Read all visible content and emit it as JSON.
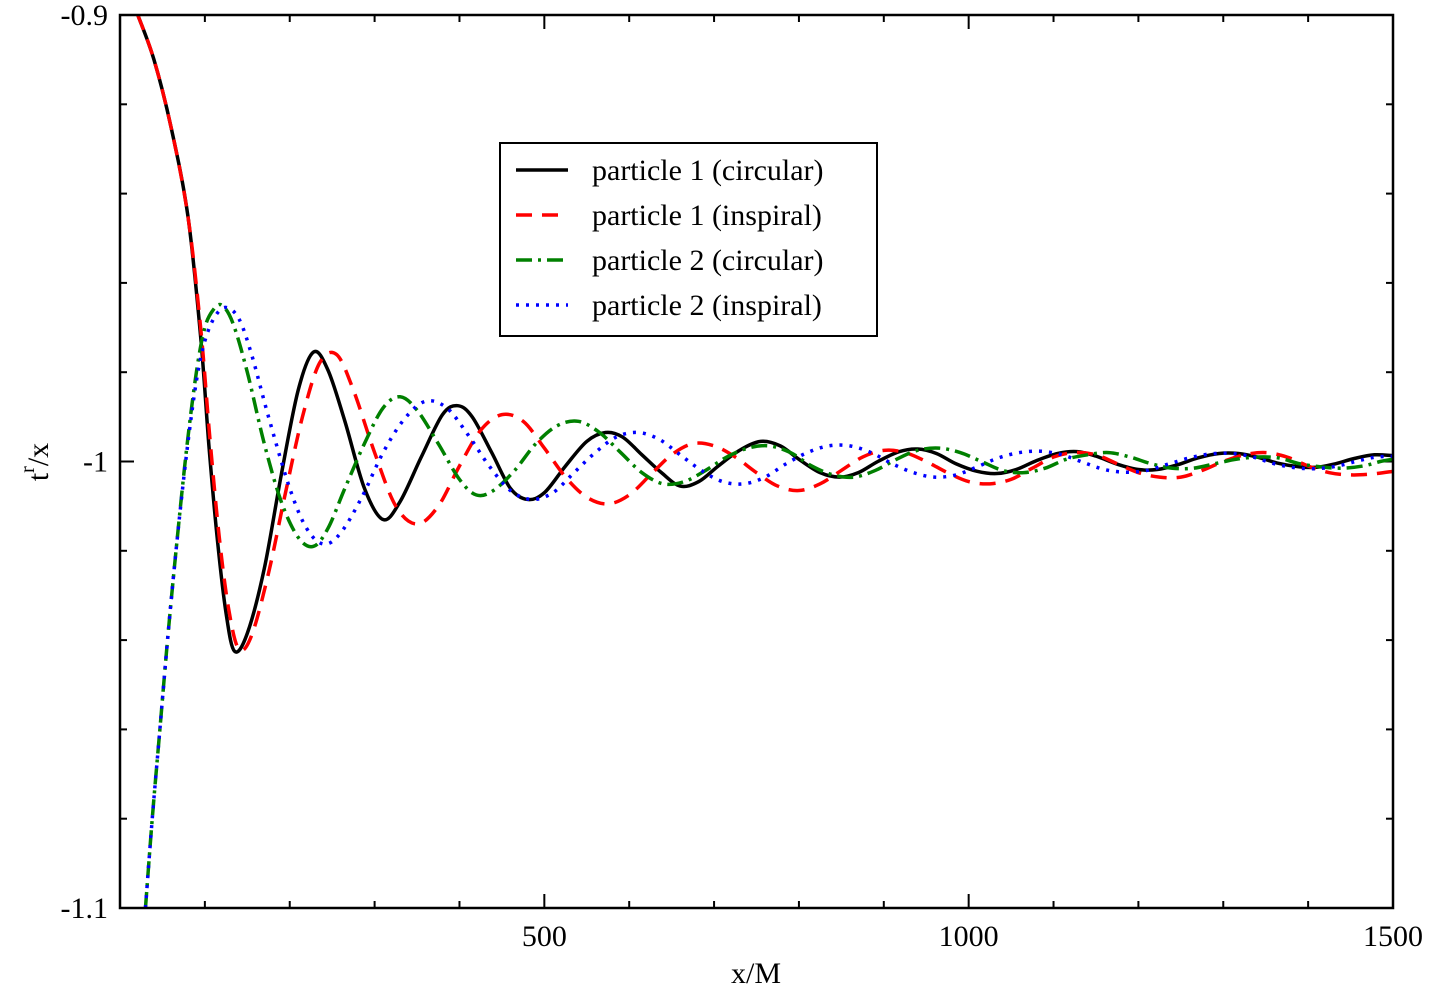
{
  "chart_data": {
    "type": "line",
    "xlabel": "x/M",
    "ylabel": {
      "base": "t",
      "superscript": "r",
      "subscript": "/x"
    },
    "xlim": [
      0,
      1500
    ],
    "ylim": [
      -1.1,
      -0.9
    ],
    "x_major_ticks": [
      500,
      1000,
      1500
    ],
    "x_tick_labels": [
      "500",
      "1000",
      "1500"
    ],
    "x_minor_step": 100,
    "y_major_ticks": [
      -1.1,
      -1.0,
      -0.9
    ],
    "y_tick_labels": [
      "-1.1",
      "-1",
      "-0.9"
    ],
    "y_minor_step": 0.02,
    "grid": false,
    "legend_position": "top-center",
    "series": [
      {
        "name": "particle 1 (circular)",
        "color": "#000000",
        "style": "solid",
        "points": [
          [
            21,
            -0.9
          ],
          [
            40,
            -0.91
          ],
          [
            60,
            -0.925
          ],
          [
            80,
            -0.945
          ],
          [
            95,
            -0.972
          ],
          [
            105,
            -0.997
          ],
          [
            115,
            -1.018
          ],
          [
            125,
            -1.034
          ],
          [
            135,
            -1.0425
          ],
          [
            150,
            -1.0385
          ],
          [
            170,
            -1.024
          ],
          [
            190,
            -1.003
          ],
          [
            210,
            -0.984
          ],
          [
            228,
            -0.9755
          ],
          [
            245,
            -0.9795
          ],
          [
            265,
            -0.991
          ],
          [
            288,
            -1.006
          ],
          [
            310,
            -1.013
          ],
          [
            330,
            -1.009
          ],
          [
            355,
            -0.999
          ],
          [
            380,
            -0.9895
          ],
          [
            398,
            -0.9875
          ],
          [
            415,
            -0.99
          ],
          [
            438,
            -0.998
          ],
          [
            460,
            -1.006
          ],
          [
            480,
            -1.0085
          ],
          [
            500,
            -1.007
          ],
          [
            525,
            -1.001
          ],
          [
            550,
            -0.9955
          ],
          [
            572,
            -0.9935
          ],
          [
            592,
            -0.9945
          ],
          [
            615,
            -0.9985
          ],
          [
            638,
            -1.0025
          ],
          [
            660,
            -1.0055
          ],
          [
            682,
            -1.0045
          ],
          [
            705,
            -1.001
          ],
          [
            730,
            -0.9975
          ],
          [
            755,
            -0.9955
          ],
          [
            778,
            -0.9965
          ],
          [
            800,
            -0.9995
          ],
          [
            825,
            -1.0025
          ],
          [
            848,
            -1.0035
          ],
          [
            870,
            -1.0025
          ],
          [
            893,
            -1.0
          ],
          [
            918,
            -0.9978
          ],
          [
            940,
            -0.9972
          ],
          [
            962,
            -0.9982
          ],
          [
            985,
            -1.0005
          ],
          [
            1010,
            -1.0022
          ],
          [
            1033,
            -1.0027
          ],
          [
            1056,
            -1.0018
          ],
          [
            1080,
            -0.9998
          ],
          [
            1105,
            -0.9982
          ],
          [
            1128,
            -0.9978
          ],
          [
            1150,
            -0.9988
          ],
          [
            1175,
            -1.0006
          ],
          [
            1200,
            -1.0018
          ],
          [
            1222,
            -1.0018
          ],
          [
            1245,
            -1.0008
          ],
          [
            1270,
            -0.9992
          ],
          [
            1295,
            -0.9982
          ],
          [
            1318,
            -0.9982
          ],
          [
            1340,
            -0.999
          ],
          [
            1365,
            -1.0004
          ],
          [
            1390,
            -1.0012
          ],
          [
            1410,
            -1.0013
          ],
          [
            1430,
            -1.0006
          ],
          [
            1455,
            -0.9993
          ],
          [
            1478,
            -0.9985
          ],
          [
            1500,
            -0.9987
          ]
        ]
      },
      {
        "name": "particle 1 (inspiral)",
        "color": "#ff0000",
        "style": "dashed",
        "points": [
          [
            21,
            -0.9
          ],
          [
            40,
            -0.91
          ],
          [
            60,
            -0.925
          ],
          [
            80,
            -0.945
          ],
          [
            95,
            -0.97
          ],
          [
            106,
            -0.995
          ],
          [
            117,
            -1.017
          ],
          [
            128,
            -1.033
          ],
          [
            140,
            -1.042
          ],
          [
            155,
            -1.039
          ],
          [
            175,
            -1.025
          ],
          [
            195,
            -1.007
          ],
          [
            215,
            -0.99
          ],
          [
            235,
            -0.978
          ],
          [
            255,
            -0.976
          ],
          [
            275,
            -0.984
          ],
          [
            300,
            -0.998
          ],
          [
            325,
            -1.01
          ],
          [
            350,
            -1.014
          ],
          [
            375,
            -1.01
          ],
          [
            400,
            -1.001
          ],
          [
            425,
            -0.993
          ],
          [
            450,
            -0.9895
          ],
          [
            475,
            -0.991
          ],
          [
            500,
            -0.997
          ],
          [
            525,
            -1.0035
          ],
          [
            550,
            -1.008
          ],
          [
            575,
            -1.0095
          ],
          [
            600,
            -1.0075
          ],
          [
            625,
            -1.003
          ],
          [
            650,
            -0.9985
          ],
          [
            675,
            -0.996
          ],
          [
            700,
            -0.9965
          ],
          [
            725,
            -0.999
          ],
          [
            750,
            -1.0025
          ],
          [
            775,
            -1.0055
          ],
          [
            800,
            -1.0065
          ],
          [
            825,
            -1.005
          ],
          [
            850,
            -1.002
          ],
          [
            875,
            -0.999
          ],
          [
            900,
            -0.9975
          ],
          [
            925,
            -0.998
          ],
          [
            950,
            -1.0
          ],
          [
            975,
            -1.0025
          ],
          [
            1000,
            -1.0045
          ],
          [
            1025,
            -1.005
          ],
          [
            1050,
            -1.004
          ],
          [
            1075,
            -1.0015
          ],
          [
            1100,
            -0.999
          ],
          [
            1125,
            -0.998
          ],
          [
            1150,
            -0.9985
          ],
          [
            1175,
            -1.0005
          ],
          [
            1200,
            -1.0025
          ],
          [
            1225,
            -1.0035
          ],
          [
            1250,
            -1.0035
          ],
          [
            1275,
            -1.002
          ],
          [
            1300,
            -1.0
          ],
          [
            1325,
            -0.9985
          ],
          [
            1350,
            -0.998
          ],
          [
            1375,
            -0.999
          ],
          [
            1400,
            -1.001
          ],
          [
            1425,
            -1.0025
          ],
          [
            1450,
            -1.003
          ],
          [
            1475,
            -1.0028
          ],
          [
            1500,
            -1.0022
          ]
        ]
      },
      {
        "name": "particle 2 (circular)",
        "color": "#008000",
        "style": "dashdot",
        "points": [
          [
            30,
            -1.1
          ],
          [
            38,
            -1.08
          ],
          [
            47,
            -1.06
          ],
          [
            56,
            -1.04
          ],
          [
            66,
            -1.02
          ],
          [
            78,
            -0.998
          ],
          [
            90,
            -0.98
          ],
          [
            100,
            -0.97
          ],
          [
            110,
            -0.966
          ],
          [
            120,
            -0.965
          ],
          [
            133,
            -0.969
          ],
          [
            150,
            -0.98
          ],
          [
            170,
            -0.996
          ],
          [
            190,
            -1.009
          ],
          [
            210,
            -1.017
          ],
          [
            228,
            -1.019
          ],
          [
            245,
            -1.015
          ],
          [
            265,
            -1.006
          ],
          [
            288,
            -0.996
          ],
          [
            310,
            -0.988
          ],
          [
            330,
            -0.9855
          ],
          [
            350,
            -0.9885
          ],
          [
            375,
            -0.996
          ],
          [
            400,
            -1.004
          ],
          [
            420,
            -1.0075
          ],
          [
            440,
            -1.0065
          ],
          [
            465,
            -1.002
          ],
          [
            490,
            -0.996
          ],
          [
            515,
            -0.992
          ],
          [
            540,
            -0.991
          ],
          [
            565,
            -0.9935
          ],
          [
            590,
            -0.998
          ],
          [
            615,
            -1.0025
          ],
          [
            640,
            -1.005
          ],
          [
            665,
            -1.0045
          ],
          [
            690,
            -1.002
          ],
          [
            715,
            -0.999
          ],
          [
            740,
            -0.997
          ],
          [
            765,
            -0.9965
          ],
          [
            790,
            -0.998
          ],
          [
            815,
            -1.001
          ],
          [
            840,
            -1.003
          ],
          [
            865,
            -1.0035
          ],
          [
            890,
            -1.002
          ],
          [
            915,
            -0.9995
          ],
          [
            940,
            -0.9975
          ],
          [
            965,
            -0.997
          ],
          [
            990,
            -0.998
          ],
          [
            1015,
            -1.0
          ],
          [
            1040,
            -1.002
          ],
          [
            1065,
            -1.0025
          ],
          [
            1090,
            -1.0015
          ],
          [
            1115,
            -0.9995
          ],
          [
            1140,
            -0.9985
          ],
          [
            1165,
            -0.998
          ],
          [
            1190,
            -0.999
          ],
          [
            1215,
            -1.0005
          ],
          [
            1240,
            -1.0015
          ],
          [
            1265,
            -1.0015
          ],
          [
            1290,
            -1.0005
          ],
          [
            1315,
            -0.9995
          ],
          [
            1340,
            -0.999
          ],
          [
            1365,
            -0.9992
          ],
          [
            1390,
            -1.0005
          ],
          [
            1415,
            -1.0012
          ],
          [
            1440,
            -1.0015
          ],
          [
            1465,
            -1.001
          ],
          [
            1485,
            -1.0
          ],
          [
            1500,
            -0.9995
          ]
        ]
      },
      {
        "name": "particle 2 (inspiral)",
        "color": "#0000ff",
        "style": "dotted",
        "points": [
          [
            30,
            -1.1
          ],
          [
            38,
            -1.08
          ],
          [
            47,
            -1.06
          ],
          [
            56,
            -1.04
          ],
          [
            66,
            -1.02
          ],
          [
            78,
            -0.999
          ],
          [
            90,
            -0.982
          ],
          [
            100,
            -0.973
          ],
          [
            112,
            -0.9675
          ],
          [
            125,
            -0.9655
          ],
          [
            140,
            -0.968
          ],
          [
            155,
            -0.976
          ],
          [
            175,
            -0.99
          ],
          [
            200,
            -1.006
          ],
          [
            220,
            -1.015
          ],
          [
            240,
            -1.0185
          ],
          [
            260,
            -1.016
          ],
          [
            285,
            -1.008
          ],
          [
            310,
            -0.998
          ],
          [
            335,
            -0.9905
          ],
          [
            360,
            -0.9865
          ],
          [
            385,
            -0.988
          ],
          [
            410,
            -0.994
          ],
          [
            435,
            -1.001
          ],
          [
            460,
            -1.0065
          ],
          [
            485,
            -1.0085
          ],
          [
            510,
            -1.007
          ],
          [
            535,
            -1.0025
          ],
          [
            560,
            -0.998
          ],
          [
            585,
            -0.9945
          ],
          [
            610,
            -0.9935
          ],
          [
            635,
            -0.995
          ],
          [
            660,
            -0.9985
          ],
          [
            685,
            -1.002
          ],
          [
            710,
            -1.0045
          ],
          [
            735,
            -1.005
          ],
          [
            760,
            -1.0035
          ],
          [
            785,
            -1.0005
          ],
          [
            810,
            -0.998
          ],
          [
            835,
            -0.9965
          ],
          [
            860,
            -0.9965
          ],
          [
            885,
            -0.998
          ],
          [
            910,
            -1.0005
          ],
          [
            935,
            -1.0025
          ],
          [
            960,
            -1.0035
          ],
          [
            985,
            -1.003
          ],
          [
            1010,
            -1.0012
          ],
          [
            1035,
            -0.9992
          ],
          [
            1060,
            -0.998
          ],
          [
            1085,
            -0.9977
          ],
          [
            1110,
            -0.9985
          ],
          [
            1135,
            -1.0002
          ],
          [
            1160,
            -1.0018
          ],
          [
            1185,
            -1.0024
          ],
          [
            1210,
            -1.002
          ],
          [
            1235,
            -1.0006
          ],
          [
            1260,
            -0.9992
          ],
          [
            1285,
            -0.9983
          ],
          [
            1310,
            -0.9982
          ],
          [
            1335,
            -0.999
          ],
          [
            1360,
            -1.0005
          ],
          [
            1385,
            -1.0014
          ],
          [
            1410,
            -1.0016
          ],
          [
            1435,
            -1.001
          ],
          [
            1460,
            -0.9998
          ],
          [
            1480,
            -0.999
          ],
          [
            1500,
            -0.9988
          ]
        ]
      }
    ]
  }
}
